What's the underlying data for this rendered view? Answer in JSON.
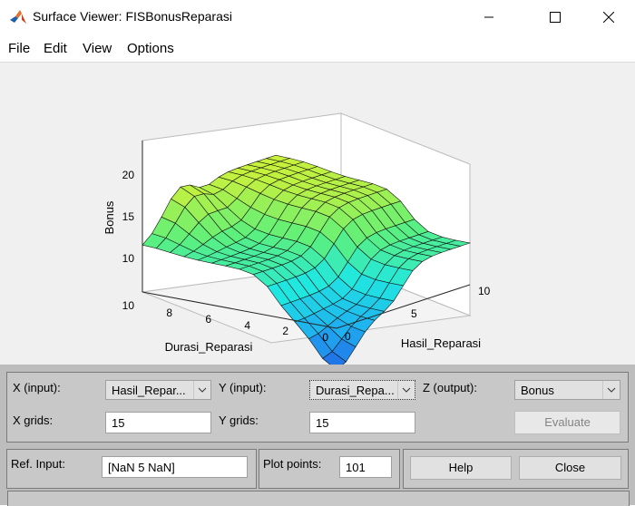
{
  "window": {
    "title": "Surface Viewer: FISBonusReparasi",
    "icon": "matlab-icon"
  },
  "menu": [
    "File",
    "Edit",
    "View",
    "Options"
  ],
  "plot": {
    "zlabel": "Bonus",
    "xlabel": "Durasi_Reparasi",
    "ylabel": "Hasil_Reparasi",
    "z_ticks": [
      "10",
      "15",
      "20"
    ],
    "durasi_ticks": [
      "10",
      "8",
      "6",
      "4",
      "2",
      "0"
    ],
    "hasil_ticks": [
      "0",
      "5",
      "10"
    ],
    "colormap": [
      "#2166e6",
      "#1fb2f0",
      "#20e8e0",
      "#5ef07a",
      "#b7f046",
      "#f6f61c"
    ]
  },
  "controls": {
    "x_input_label": "X (input):",
    "x_input_value": "Hasil_Repar...",
    "y_input_label": "Y (input):",
    "y_input_value": "Durasi_Repa...",
    "z_output_label": "Z (output):",
    "z_output_value": "Bonus",
    "x_grids_label": "X grids:",
    "x_grids_value": "15",
    "y_grids_label": "Y grids:",
    "y_grids_value": "15",
    "evaluate_label": "Evaluate",
    "ref_input_label": "Ref. Input:",
    "ref_input_value": "[NaN 5 NaN]",
    "plot_points_label": "Plot points:",
    "plot_points_value": "101",
    "help_label": "Help",
    "close_label": "Close"
  }
}
